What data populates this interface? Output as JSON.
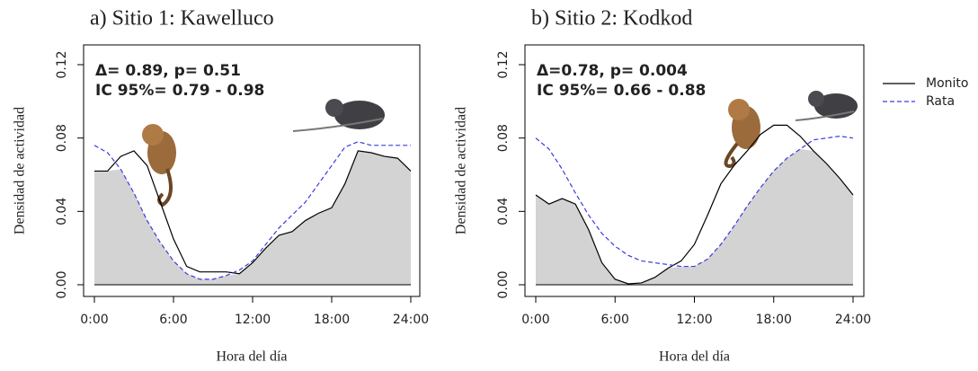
{
  "chart_data": [
    {
      "type": "line",
      "title": "a) Sitio 1: Kawelluco",
      "xlabel": "Hora del día",
      "ylabel": "Densidad de actividad",
      "annotations": [
        "Δ= 0.89, p= 0.51",
        "IC 95%= 0.79 - 0.98"
      ],
      "x": [
        0,
        1,
        2,
        3,
        4,
        5,
        6,
        7,
        8,
        9,
        10,
        11,
        12,
        13,
        14,
        15,
        16,
        17,
        18,
        19,
        20,
        21,
        22,
        23,
        24
      ],
      "series": [
        {
          "color": "#000000",
          "dash": false,
          "values": [
            0.062,
            0.062,
            0.07,
            0.073,
            0.065,
            0.045,
            0.025,
            0.01,
            0.007,
            0.007,
            0.007,
            0.006,
            0.012,
            0.02,
            0.027,
            0.029,
            0.035,
            0.039,
            0.042,
            0.055,
            0.073,
            0.072,
            0.07,
            0.069,
            0.062
          ]
        },
        {
          "color": "#3a3ae0",
          "dash": true,
          "values": [
            0.076,
            0.072,
            0.063,
            0.05,
            0.035,
            0.023,
            0.013,
            0.006,
            0.003,
            0.003,
            0.005,
            0.008,
            0.013,
            0.022,
            0.031,
            0.038,
            0.045,
            0.055,
            0.065,
            0.075,
            0.078,
            0.076,
            0.076,
            0.076,
            0.076
          ]
        }
      ],
      "overlap_fill": "#d3d3d3",
      "xlim": [
        0,
        24
      ],
      "xticks": [
        {
          "value": 0,
          "label": "0:00"
        },
        {
          "value": 6,
          "label": "6:00"
        },
        {
          "value": 12,
          "label": "12:00"
        },
        {
          "value": 18,
          "label": "18:00"
        },
        {
          "value": 24,
          "label": "24:00"
        }
      ],
      "ylim": [
        0,
        0.12
      ],
      "yticks": [
        {
          "value": 0,
          "label": "0.00"
        },
        0.04,
        0.08,
        0.12
      ]
    },
    {
      "type": "line",
      "title": "b) Sitio 2: Kodkod",
      "xlabel": "Hora del día",
      "ylabel": "Densidad de actividad",
      "annotations": [
        "Δ=0.78, p= 0.004",
        "IC 95%= 0.66 - 0.88"
      ],
      "x": [
        0,
        1,
        2,
        3,
        4,
        5,
        6,
        7,
        8,
        9,
        10,
        11,
        12,
        13,
        14,
        15,
        16,
        17,
        18,
        19,
        20,
        21,
        22,
        23,
        24
      ],
      "series": [
        {
          "name": "Monito",
          "color": "#000000",
          "dash": false,
          "values": [
            0.049,
            0.044,
            0.047,
            0.044,
            0.03,
            0.012,
            0.003,
            0.0005,
            0.001,
            0.004,
            0.009,
            0.013,
            0.022,
            0.038,
            0.055,
            0.065,
            0.073,
            0.082,
            0.087,
            0.087,
            0.081,
            0.073,
            0.066,
            0.058,
            0.049
          ]
        },
        {
          "name": "Rata",
          "color": "#3a3ae0",
          "dash": true,
          "values": [
            0.08,
            0.074,
            0.063,
            0.05,
            0.038,
            0.028,
            0.021,
            0.016,
            0.013,
            0.012,
            0.011,
            0.01,
            0.01,
            0.014,
            0.022,
            0.032,
            0.043,
            0.053,
            0.062,
            0.069,
            0.074,
            0.079,
            0.08,
            0.081,
            0.08
          ]
        }
      ],
      "overlap_fill": "#d3d3d3",
      "legend": "outside-right",
      "xlim": [
        0,
        24
      ],
      "xticks": [
        {
          "value": 0,
          "label": "0:00"
        },
        {
          "value": 6,
          "label": "6:00"
        },
        {
          "value": 12,
          "label": "12:00"
        },
        {
          "value": 18,
          "label": "18:00"
        },
        {
          "value": 24,
          "label": "24:00"
        }
      ],
      "ylim": [
        0,
        0.12
      ],
      "yticks": [
        {
          "value": 0,
          "label": "0.00"
        },
        0.04,
        0.08,
        0.12
      ]
    }
  ]
}
